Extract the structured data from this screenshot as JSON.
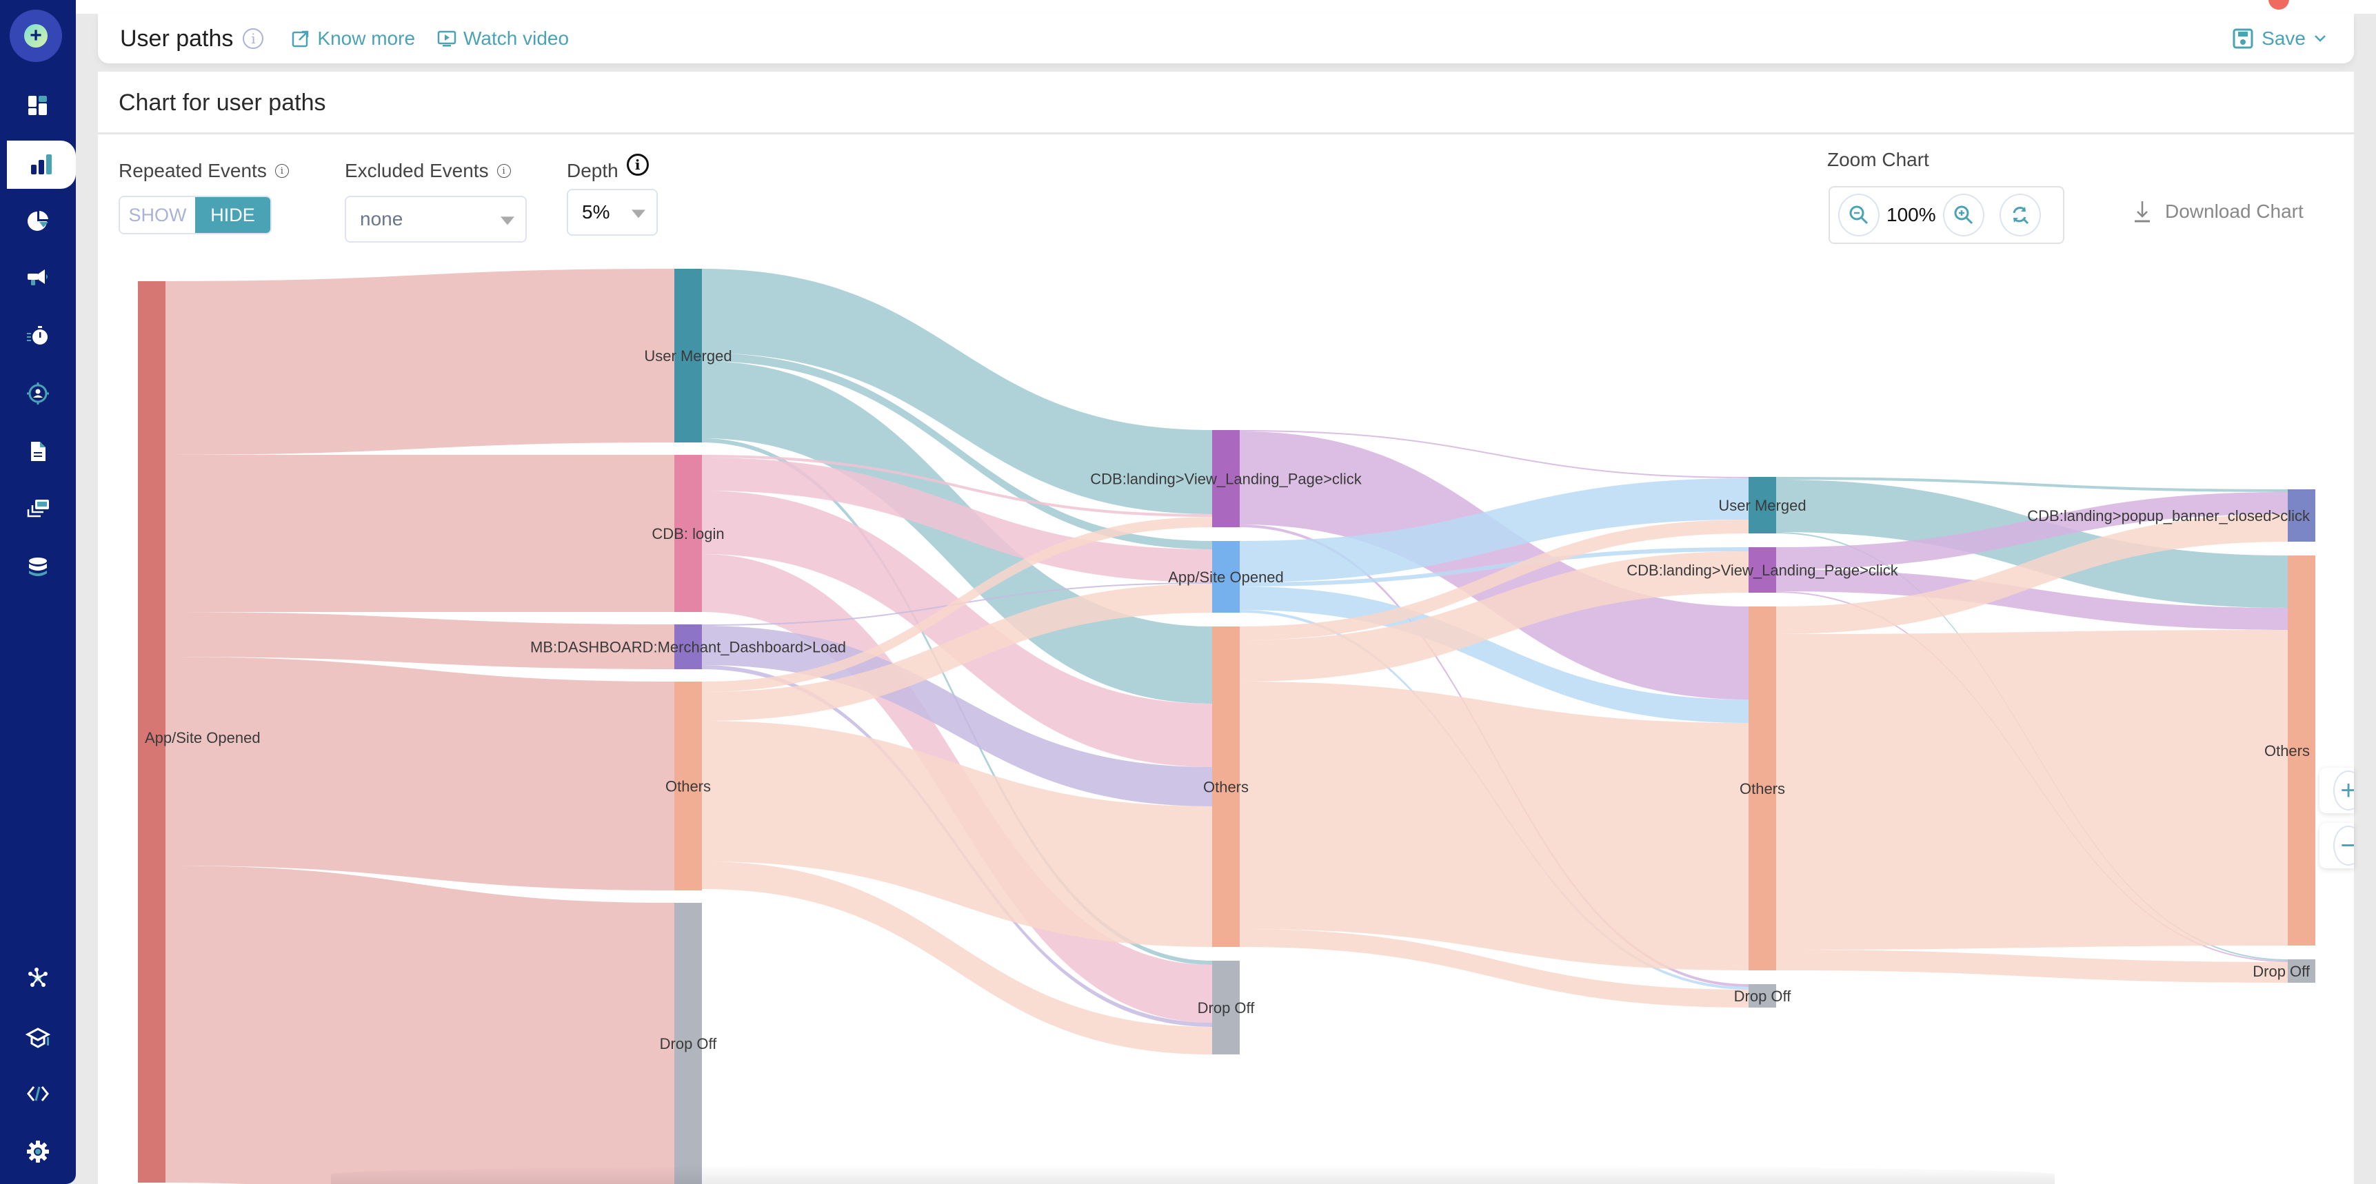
{
  "sidebar": {
    "items": [
      {
        "name": "create",
        "icon": "plus-icon"
      },
      {
        "name": "dashboards",
        "icon": "dashboard-grid-icon"
      },
      {
        "name": "analytics",
        "icon": "bar-chart-icon",
        "active": true
      },
      {
        "name": "segments",
        "icon": "pie-chart-icon"
      },
      {
        "name": "campaigns",
        "icon": "megaphone-icon"
      },
      {
        "name": "journeys",
        "icon": "stopwatch-icon"
      },
      {
        "name": "personalization",
        "icon": "user-target-icon"
      },
      {
        "name": "reports",
        "icon": "document-icon"
      },
      {
        "name": "templates",
        "icon": "stacked-cards-icon"
      },
      {
        "name": "data",
        "icon": "database-icon"
      },
      {
        "name": "integrations",
        "icon": "network-icon"
      },
      {
        "name": "academy",
        "icon": "graduation-cap-icon"
      },
      {
        "name": "developer",
        "icon": "code-icon"
      },
      {
        "name": "settings",
        "icon": "gear-icon"
      }
    ]
  },
  "header": {
    "title": "User paths",
    "know_more": "Know more",
    "watch_video": "Watch video",
    "save": "Save"
  },
  "card": {
    "title": "Chart for user paths"
  },
  "controls": {
    "repeated_events_label": "Repeated Events",
    "repeated_show": "SHOW",
    "repeated_hide": "HIDE",
    "repeated_selected": "HIDE",
    "excluded_events_label": "Excluded Events",
    "excluded_events_value": "none",
    "depth_label": "Depth",
    "depth_value": "5%",
    "zoom_label": "Zoom Chart",
    "zoom_value": "100%",
    "download_label": "Download Chart"
  },
  "chart_data": {
    "type": "sankey",
    "title": "Chart for user paths",
    "columns": [
      [
        {
          "id": "c0_app",
          "label": "App/Site Opened",
          "color": "#d67774",
          "link_color": "#ebbab9"
        }
      ],
      [
        {
          "id": "c1_um",
          "label": "User Merged",
          "color": "#4193a5",
          "link_color": "#a1cad2"
        },
        {
          "id": "c1_login",
          "label": "CDB: login",
          "color": "#e585a6",
          "link_color": "#f1c3d2"
        },
        {
          "id": "c1_mb",
          "label": "MB:DASHBOARD:Merchant_Dashboard>Load",
          "color": "#8e74c6",
          "link_color": "#c6bae2"
        },
        {
          "id": "c1_oth",
          "label": "Others",
          "color": "#f2ae94",
          "link_color": "#f8d6ca"
        },
        {
          "id": "c1_drop",
          "label": "Drop Off",
          "color": "#b0b5be",
          "link_color": "#d8dade"
        }
      ],
      [
        {
          "id": "c2_view",
          "label": "CDB:landing>View_Landing_Page>click",
          "color": "#ab68bf",
          "link_color": "#d6b3df"
        },
        {
          "id": "c2_app",
          "label": "App/Site Opened",
          "color": "#76b1ee",
          "link_color": "#badaf6"
        },
        {
          "id": "c2_oth",
          "label": "Others",
          "color": "#f2ae94",
          "link_color": "#f8d6ca"
        },
        {
          "id": "c2_drop",
          "label": "Drop Off",
          "color": "#b0b5be",
          "link_color": "#d8dade"
        }
      ],
      [
        {
          "id": "c3_um",
          "label": "User Merged",
          "color": "#4193a5",
          "link_color": "#a1cad2"
        },
        {
          "id": "c3_view",
          "label": "CDB:landing>View_Landing_Page>click",
          "color": "#ab68bf",
          "link_color": "#d6b3df"
        },
        {
          "id": "c3_oth",
          "label": "Others",
          "color": "#f2ae94",
          "link_color": "#f8d6ca"
        },
        {
          "id": "c3_drop",
          "label": "Drop Off",
          "color": "#b0b5be",
          "link_color": "#d8dade"
        }
      ],
      [
        {
          "id": "c4_popup",
          "label": "CDB:landing>popup_banner_closed>click",
          "color": "#7b86c6",
          "link_color": "#bcc2e2"
        },
        {
          "id": "c4_oth",
          "label": "Others",
          "color": "#f2ae94",
          "link_color": "#f8d6ca"
        },
        {
          "id": "c4_drop",
          "label": "Drop Off",
          "color": "#b0b5be",
          "link_color": "#d8dade"
        }
      ]
    ],
    "links": [
      {
        "source": "c0_app",
        "target": "c1_um",
        "value": 252
      },
      {
        "source": "c0_app",
        "target": "c1_login",
        "value": 228
      },
      {
        "source": "c0_app",
        "target": "c1_mb",
        "value": 65
      },
      {
        "source": "c0_app",
        "target": "c1_oth",
        "value": 303
      },
      {
        "source": "c0_app",
        "target": "c1_drop",
        "value": 460
      },
      {
        "source": "c1_um",
        "target": "c2_view",
        "value": 122
      },
      {
        "source": "c1_um",
        "target": "c2_app",
        "value": 12
      },
      {
        "source": "c1_um",
        "target": "c2_oth",
        "value": 112
      },
      {
        "source": "c1_um",
        "target": "c2_drop",
        "value": 6
      },
      {
        "source": "c1_login",
        "target": "c2_view",
        "value": 4
      },
      {
        "source": "c1_login",
        "target": "c2_app",
        "value": 48
      },
      {
        "source": "c1_login",
        "target": "c2_oth",
        "value": 92
      },
      {
        "source": "c1_login",
        "target": "c2_drop",
        "value": 84
      },
      {
        "source": "c1_mb",
        "target": "c2_app",
        "value": 2
      },
      {
        "source": "c1_mb",
        "target": "c2_oth",
        "value": 57
      },
      {
        "source": "c1_mb",
        "target": "c2_drop",
        "value": 6
      },
      {
        "source": "c1_oth",
        "target": "c2_view",
        "value": 15
      },
      {
        "source": "c1_oth",
        "target": "c2_app",
        "value": 42
      },
      {
        "source": "c1_oth",
        "target": "c2_oth",
        "value": 204
      },
      {
        "source": "c1_oth",
        "target": "c2_drop",
        "value": 40
      },
      {
        "source": "c2_view",
        "target": "c3_um",
        "value": 2
      },
      {
        "source": "c2_view",
        "target": "c3_oth",
        "value": 135
      },
      {
        "source": "c2_view",
        "target": "c3_drop",
        "value": 4
      },
      {
        "source": "c2_app",
        "target": "c3_um",
        "value": 60
      },
      {
        "source": "c2_app",
        "target": "c3_view",
        "value": 6
      },
      {
        "source": "c2_app",
        "target": "c3_oth",
        "value": 34
      },
      {
        "source": "c2_app",
        "target": "c3_drop",
        "value": 4
      },
      {
        "source": "c2_oth",
        "target": "c3_um",
        "value": 20
      },
      {
        "source": "c2_oth",
        "target": "c3_view",
        "value": 60
      },
      {
        "source": "c2_oth",
        "target": "c3_oth",
        "value": 359
      },
      {
        "source": "c2_oth",
        "target": "c3_drop",
        "value": 26
      },
      {
        "source": "c3_um",
        "target": "c4_popup",
        "value": 4
      },
      {
        "source": "c3_um",
        "target": "c4_oth",
        "value": 76
      },
      {
        "source": "c3_um",
        "target": "c4_drop",
        "value": 2
      },
      {
        "source": "c3_view",
        "target": "c4_popup",
        "value": 32
      },
      {
        "source": "c3_view",
        "target": "c4_oth",
        "value": 32
      },
      {
        "source": "c3_view",
        "target": "c4_drop",
        "value": 2
      },
      {
        "source": "c3_oth",
        "target": "c4_popup",
        "value": 40
      },
      {
        "source": "c3_oth",
        "target": "c4_oth",
        "value": 458
      },
      {
        "source": "c3_oth",
        "target": "c4_drop",
        "value": 30
      }
    ]
  },
  "float_controls": {
    "plus": "+",
    "minus": "−"
  }
}
